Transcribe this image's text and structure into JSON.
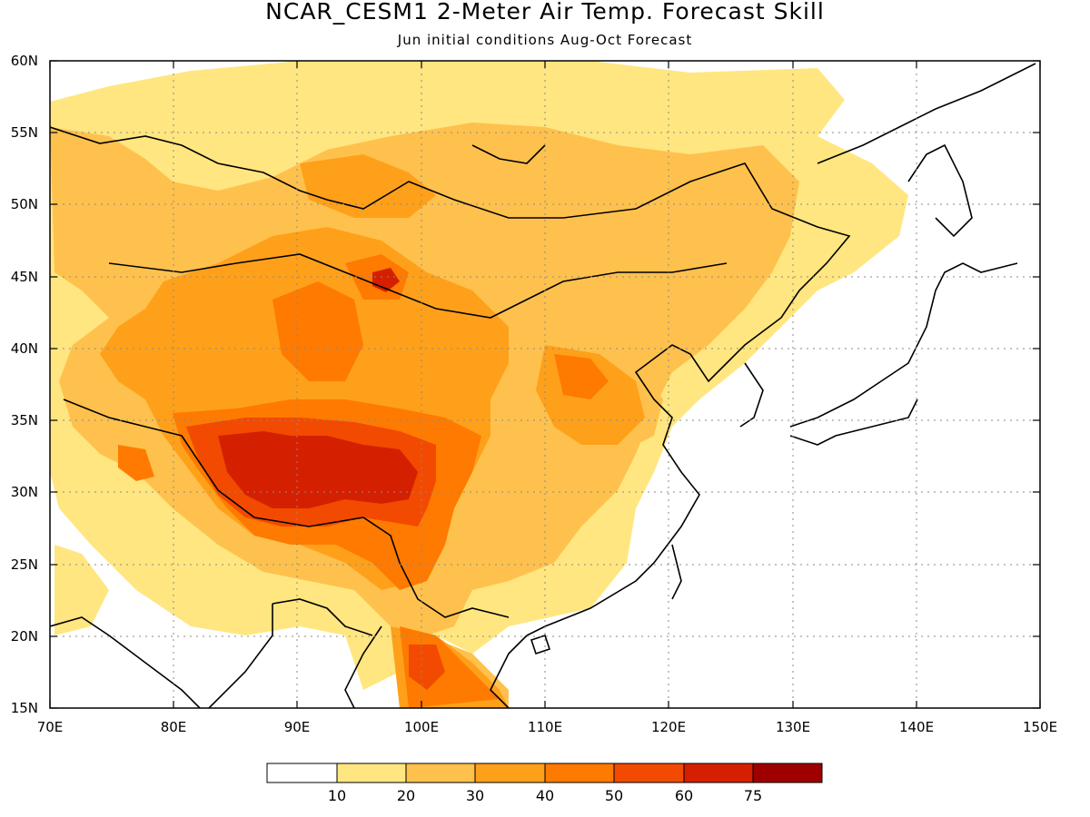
{
  "title": "NCAR_CESM1 2-Meter Air Temp. Forecast Skill",
  "subtitle": "Jun initial conditions  Aug-Oct Forecast",
  "map": {
    "lon_range": [
      70,
      150
    ],
    "lat_range": [
      15,
      60
    ],
    "lon_ticks": [
      "70E",
      "80E",
      "90E",
      "100E",
      "110E",
      "120E",
      "130E",
      "140E",
      "150E"
    ],
    "lat_ticks": [
      "15N",
      "20N",
      "25N",
      "30N",
      "35N",
      "40N",
      "45N",
      "50N",
      "55N",
      "60N"
    ],
    "grid": "dotted"
  },
  "legend": {
    "labels": [
      "10",
      "20",
      "30",
      "40",
      "50",
      "60",
      "75"
    ],
    "colors": [
      "#ffffff",
      "#ffe680",
      "#ffc14d",
      "#ffa01a",
      "#ff7a00",
      "#f24a00",
      "#d42000",
      "#9e0000"
    ]
  }
}
